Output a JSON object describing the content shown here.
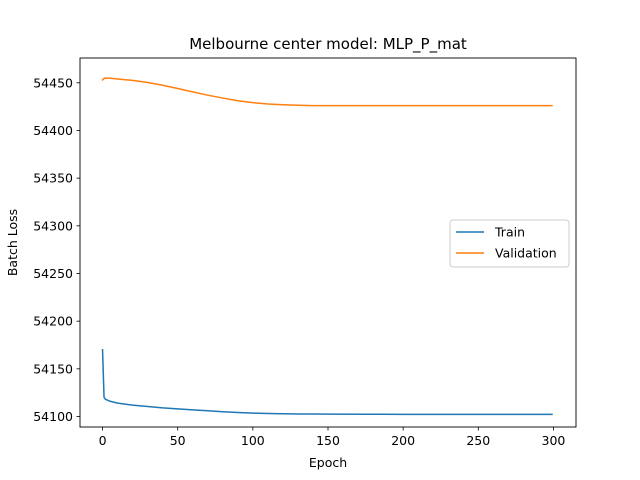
{
  "chart_data": {
    "type": "line",
    "title": "Melbourne center model:  MLP_P_mat",
    "xlabel": "Epoch",
    "ylabel": "Batch Loss",
    "xlim": [
      -15,
      315
    ],
    "ylim": [
      54089,
      54476
    ],
    "xticks": [
      0,
      50,
      100,
      150,
      200,
      250,
      300
    ],
    "yticks": [
      54100,
      54150,
      54200,
      54250,
      54300,
      54350,
      54400,
      54450
    ],
    "grid": false,
    "legend_position": "center-right",
    "series": [
      {
        "name": "Train",
        "color": "#1f77b4",
        "x": [
          0,
          1,
          2,
          5,
          10,
          15,
          20,
          30,
          40,
          50,
          60,
          70,
          80,
          90,
          100,
          110,
          120,
          130,
          140,
          150,
          175,
          200,
          225,
          250,
          275,
          299
        ],
        "y": [
          54170,
          54120,
          54118,
          54116,
          54114,
          54113,
          54112,
          54110.5,
          54109,
          54108,
          54107,
          54106,
          54105,
          54104.2,
          54103.6,
          54103.2,
          54102.9,
          54102.7,
          54102.6,
          54102.5,
          54102.4,
          54102.3,
          54102.3,
          54102.3,
          54102.3,
          54102.3
        ]
      },
      {
        "name": "Validation",
        "color": "#ff7f0e",
        "x": [
          0,
          1,
          2,
          5,
          10,
          20,
          30,
          40,
          50,
          60,
          70,
          80,
          90,
          100,
          110,
          120,
          130,
          140,
          150,
          175,
          200,
          225,
          250,
          275,
          299
        ],
        "y": [
          54453,
          54454.5,
          54455,
          54454.8,
          54454,
          54452.5,
          54450.3,
          54447.4,
          54444,
          54440.5,
          54437,
          54434,
          54431.2,
          54429.2,
          54427.8,
          54427,
          54426.4,
          54426.1,
          54426,
          54426,
          54426,
          54426,
          54426,
          54426,
          54426
        ]
      }
    ]
  }
}
